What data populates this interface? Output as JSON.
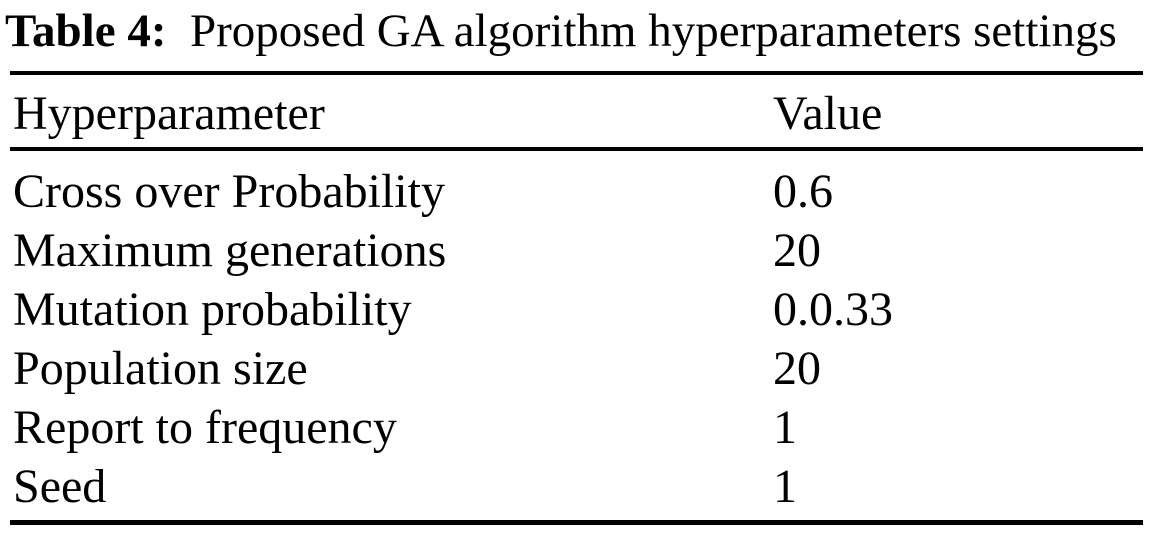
{
  "table": {
    "caption": {
      "label": "Table 4:",
      "text": "Proposed GA algorithm hyperparameters settings"
    },
    "columns": {
      "name": "Hyperparameter",
      "value": "Value"
    },
    "rows": [
      {
        "name": "Cross over Probability",
        "value": "0.6"
      },
      {
        "name": "Maximum generations",
        "value": "20"
      },
      {
        "name": "Mutation probability",
        "value": "0.0.33"
      },
      {
        "name": "Population size",
        "value": "20"
      },
      {
        "name": "Report to frequency",
        "value": "1"
      },
      {
        "name": "Seed",
        "value": "1"
      }
    ],
    "colors": {
      "text": "#000000",
      "background": "#ffffff",
      "rule": "#000000"
    }
  }
}
